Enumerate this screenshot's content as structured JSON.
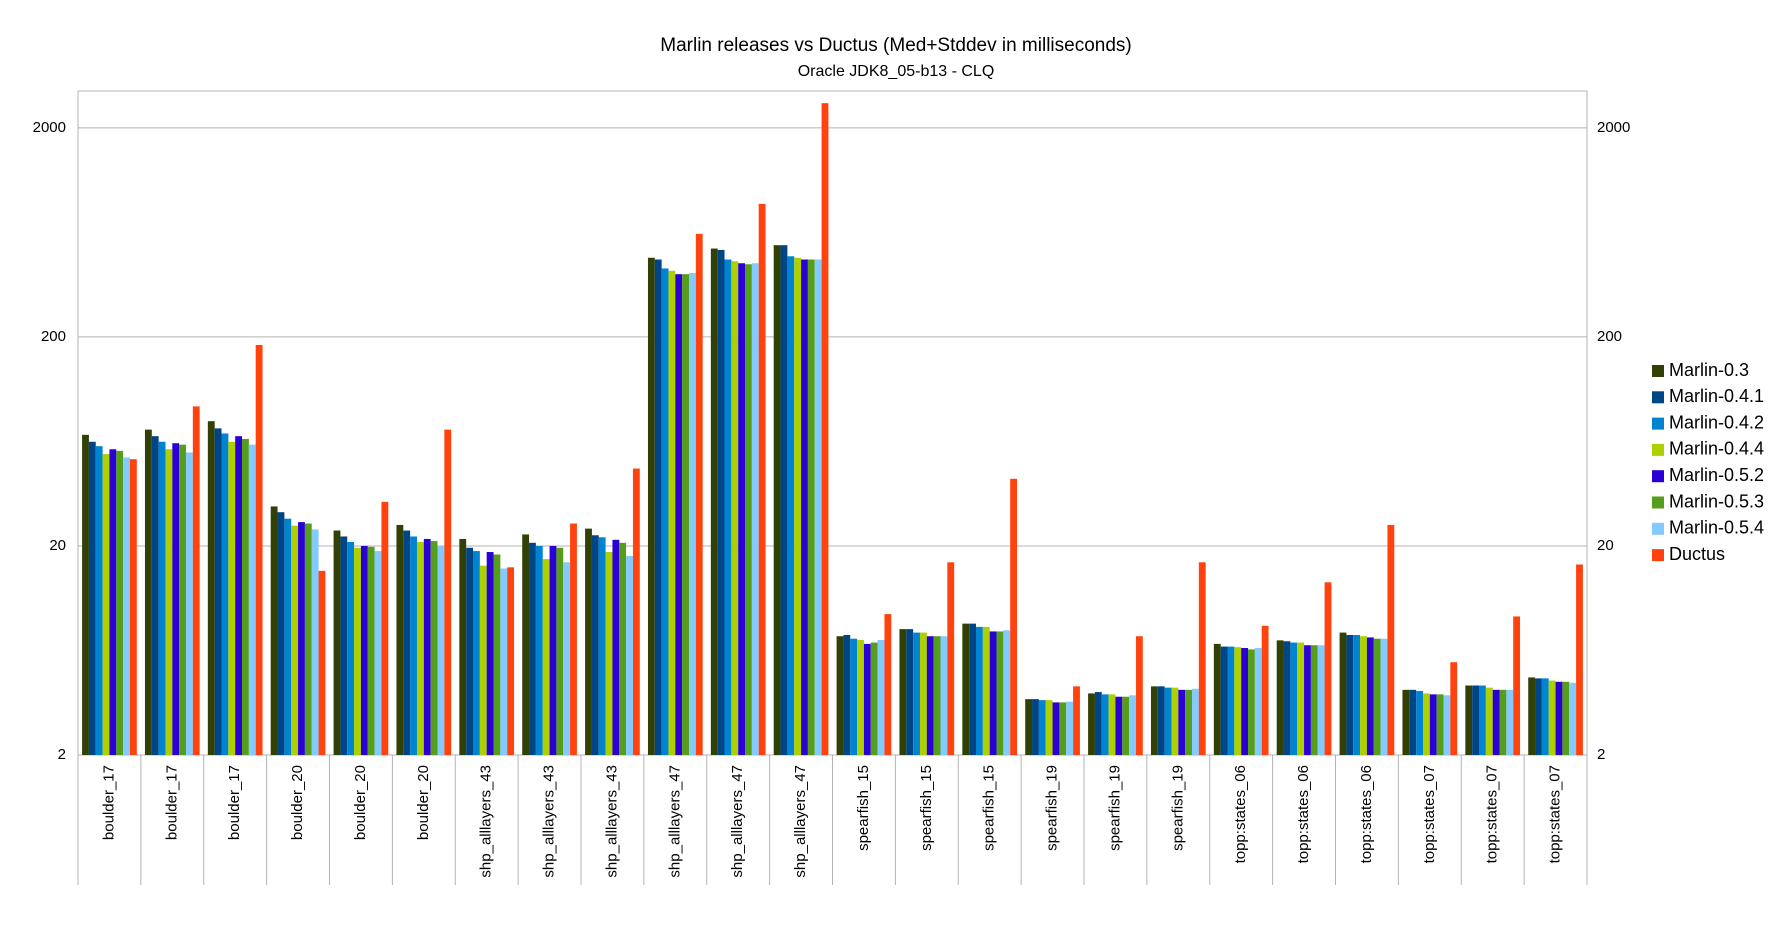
{
  "chart_data": {
    "type": "bar",
    "title": "Marlin releases vs Ductus (Med+Stddev in milliseconds)",
    "subtitle": "Oracle JDK8_05-b13 - CLQ",
    "categories": [
      "boulder_17",
      "boulder_17",
      "boulder_17",
      "boulder_20",
      "boulder_20",
      "boulder_20",
      "shp_alllayers_43",
      "shp_alllayers_43",
      "shp_alllayers_43",
      "shp_alllayers_47",
      "shp_alllayers_47",
      "shp_alllayers_47",
      "spearfish_15",
      "spearfish_15",
      "spearfish_15",
      "spearfish_19",
      "spearfish_19",
      "spearfish_19",
      "topp:states_06",
      "topp:states_06",
      "topp:states_06",
      "topp:states_07",
      "topp:states_07",
      "topp:states_07"
    ],
    "series": [
      {
        "name": "Marlin-0.3",
        "color": "#314004",
        "values": [
          68,
          72,
          79,
          30.9,
          23.7,
          25.2,
          21.6,
          22.7,
          24.2,
          478,
          529,
          549,
          7.4,
          8.0,
          8.5,
          3.7,
          3.94,
          4.26,
          6.8,
          7.07,
          7.7,
          4.1,
          4.3,
          4.7
        ]
      },
      {
        "name": "Marlin-0.4.1",
        "color": "#004586",
        "values": [
          63,
          67,
          73,
          29,
          22.2,
          23.7,
          19.6,
          20.7,
          22.5,
          469,
          521,
          549,
          7.5,
          8.0,
          8.5,
          3.7,
          4.0,
          4.26,
          6.6,
          7.0,
          7.5,
          4.1,
          4.3,
          4.65
        ]
      },
      {
        "name": "Marlin-0.4.2",
        "color": "#0084d1",
        "values": [
          60,
          63,
          69,
          27,
          20.9,
          22.2,
          18.9,
          20,
          22,
          425,
          469,
          486,
          7.2,
          7.7,
          8.2,
          3.66,
          3.9,
          4.2,
          6.6,
          6.9,
          7.5,
          4.05,
          4.3,
          4.65
        ]
      },
      {
        "name": "Marlin-0.4.4",
        "color": "#aecf00",
        "values": [
          55,
          58,
          63,
          25,
          19.6,
          20.9,
          16.1,
          17.3,
          18.7,
          414,
          460,
          478,
          7.1,
          7.7,
          8.2,
          3.66,
          3.9,
          4.2,
          6.56,
          6.9,
          7.4,
          3.94,
          4.2,
          4.54
        ]
      },
      {
        "name": "Marlin-0.5.2",
        "color": "#2a00d4",
        "values": [
          58,
          62,
          67,
          26,
          20,
          21.6,
          18.7,
          20,
          21.4,
          399,
          450,
          469,
          6.8,
          7.4,
          7.8,
          3.57,
          3.8,
          4.1,
          6.5,
          6.7,
          7.3,
          3.9,
          4.1,
          4.48
        ]
      },
      {
        "name": "Marlin-0.5.3",
        "color": "#579d1c",
        "values": [
          57,
          61,
          65,
          25.6,
          19.8,
          21.1,
          18.2,
          19.6,
          20.7,
          399,
          445,
          469,
          6.9,
          7.4,
          7.8,
          3.57,
          3.8,
          4.1,
          6.4,
          6.7,
          7.2,
          3.9,
          4.1,
          4.48
        ]
      },
      {
        "name": "Marlin-0.5.4",
        "color": "#83caff",
        "values": [
          53,
          56,
          61,
          24,
          18.9,
          20,
          15.6,
          16.7,
          17.9,
          404,
          450,
          469,
          7.1,
          7.4,
          7.9,
          3.6,
          3.86,
          4.15,
          6.5,
          6.7,
          7.2,
          3.86,
          4.1,
          4.43
        ]
      },
      {
        "name": "Ductus",
        "color": "#ff420e",
        "values": [
          52,
          93,
          183,
          15.2,
          32.5,
          72,
          15.8,
          25.6,
          46.9,
          622,
          865,
          2624,
          9.44,
          16.7,
          41.9,
          4.26,
          7.4,
          16.7,
          8.3,
          13.4,
          25.2,
          5.56,
          9.2,
          16.3
        ]
      }
    ],
    "log_scale": true,
    "ylim": [
      2,
      3000
    ],
    "yticks": [
      2,
      20,
      200,
      2000
    ],
    "grid": true,
    "legend": "right"
  }
}
